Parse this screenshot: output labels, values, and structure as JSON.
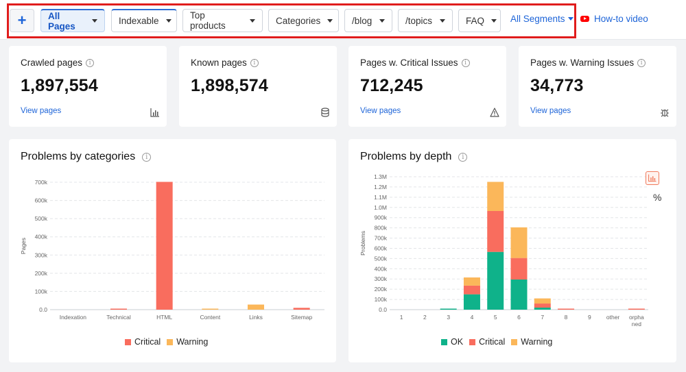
{
  "toolbar": {
    "add_label": "+",
    "segments": [
      {
        "label": "All Pages"
      },
      {
        "label": "Indexable"
      },
      {
        "label": "Top products"
      },
      {
        "label": "Categories"
      },
      {
        "label": "/blog"
      },
      {
        "label": "/topics"
      },
      {
        "label": "FAQ"
      }
    ],
    "all_segments_label": "All Segments",
    "howto_label": "How-to video"
  },
  "stats": [
    {
      "label": "Crawled pages",
      "value": "1,897,554",
      "link": "View pages",
      "icon": "bar-chart-icon"
    },
    {
      "label": "Known pages",
      "value": "1,898,574",
      "link": "",
      "icon": "database-icon"
    },
    {
      "label": "Pages w. Critical Issues",
      "value": "712,245",
      "link": "View pages",
      "icon": "warning-triangle-icon"
    },
    {
      "label": "Pages w. Warning Issues",
      "value": "34,773",
      "link": "View pages",
      "icon": "bug-icon"
    }
  ],
  "colors": {
    "critical": "#f96d5e",
    "warning": "#fbb75a",
    "ok": "#0fb28a",
    "link": "#1d64d8",
    "highlight": "#e01c1c"
  },
  "chart_data": [
    {
      "type": "bar",
      "title": "Problems by categories",
      "ylabel": "Pages",
      "xlabel": "",
      "ylim": [
        0,
        700000
      ],
      "yticks": [
        "0.0",
        "100k",
        "200k",
        "300k",
        "400k",
        "500k",
        "600k",
        "700k"
      ],
      "categories": [
        "Indexation",
        "Technical",
        "HTML",
        "Content",
        "Links",
        "Sitemap"
      ],
      "series": [
        {
          "name": "Critical",
          "values": [
            0,
            4000,
            702000,
            0,
            0,
            10000
          ]
        },
        {
          "name": "Warning",
          "values": [
            0,
            0,
            0,
            5000,
            28000,
            0
          ]
        }
      ],
      "grid": true,
      "legend": "bottom"
    },
    {
      "type": "bar",
      "stacked": true,
      "title": "Problems by depth",
      "ylabel": "Problems",
      "xlabel": "",
      "ylim": [
        0,
        1300000
      ],
      "yticks": [
        "0.0",
        "100k",
        "200k",
        "300k",
        "400k",
        "500k",
        "600k",
        "700k",
        "800k",
        "900k",
        "1.0M",
        "1.1M",
        "1.2M",
        "1.3M"
      ],
      "categories": [
        "1",
        "2",
        "3",
        "4",
        "5",
        "6",
        "7",
        "8",
        "9",
        "other",
        "orphaned"
      ],
      "series": [
        {
          "name": "OK",
          "values": [
            0,
            0,
            10000,
            150000,
            565000,
            295000,
            20000,
            0,
            0,
            0,
            0
          ]
        },
        {
          "name": "Critical",
          "values": [
            0,
            0,
            0,
            85000,
            400000,
            210000,
            40000,
            5000,
            0,
            0,
            10000
          ]
        },
        {
          "name": "Warning",
          "values": [
            0,
            0,
            0,
            80000,
            285000,
            300000,
            50000,
            0,
            0,
            0,
            0
          ]
        }
      ],
      "grid": true,
      "legend": "bottom"
    }
  ]
}
